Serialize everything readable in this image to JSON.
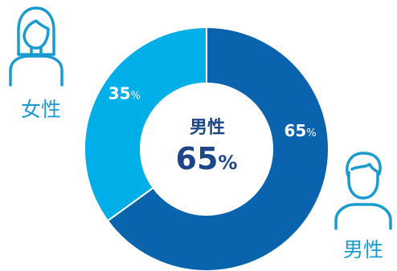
{
  "colors": {
    "female": "#00aee8",
    "male": "#0a63ad",
    "center_text": "#1d4689",
    "icon": "#1a9bd0"
  },
  "female_label": "女性",
  "male_label": "男性",
  "center": {
    "label": "男性",
    "value": "65",
    "unit": "%"
  },
  "chart_data": {
    "type": "pie",
    "donut": true,
    "title": "",
    "slices": [
      {
        "name": "男性",
        "value": 65,
        "label": "65",
        "unit": "%",
        "color": "#0a63ad"
      },
      {
        "name": "女性",
        "value": 35,
        "label": "35",
        "unit": "%",
        "color": "#00aee8"
      }
    ]
  }
}
